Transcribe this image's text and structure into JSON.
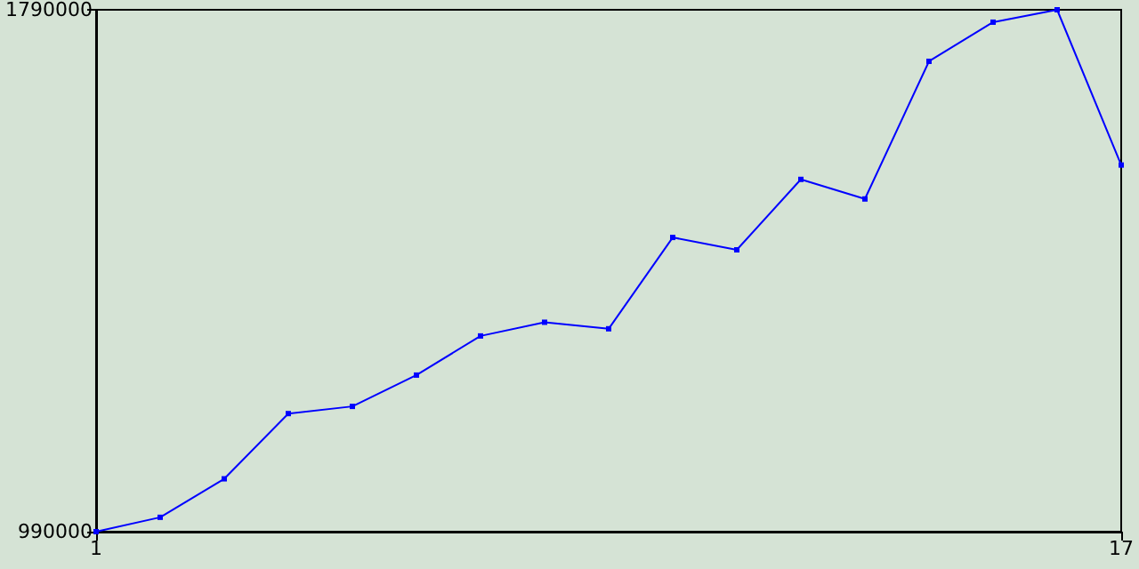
{
  "chart_data": {
    "type": "line",
    "x": [
      1,
      2,
      3,
      4,
      5,
      6,
      7,
      8,
      9,
      10,
      11,
      12,
      13,
      14,
      15,
      16,
      17
    ],
    "series": [
      {
        "color": "#0000ff",
        "values": [
          990000,
          1012000,
          1071000,
          1171000,
          1182000,
          1230000,
          1290000,
          1311000,
          1301000,
          1441000,
          1422000,
          1530000,
          1500000,
          1711000,
          1771000,
          1790000,
          1552000
        ]
      }
    ],
    "xlim": [
      1,
      17
    ],
    "xticks": [
      1,
      17
    ],
    "ylim": [
      990000,
      1790000
    ],
    "yticks": [
      990000,
      1790000
    ],
    "grid": false,
    "marker": "square",
    "line_style": "solid"
  }
}
